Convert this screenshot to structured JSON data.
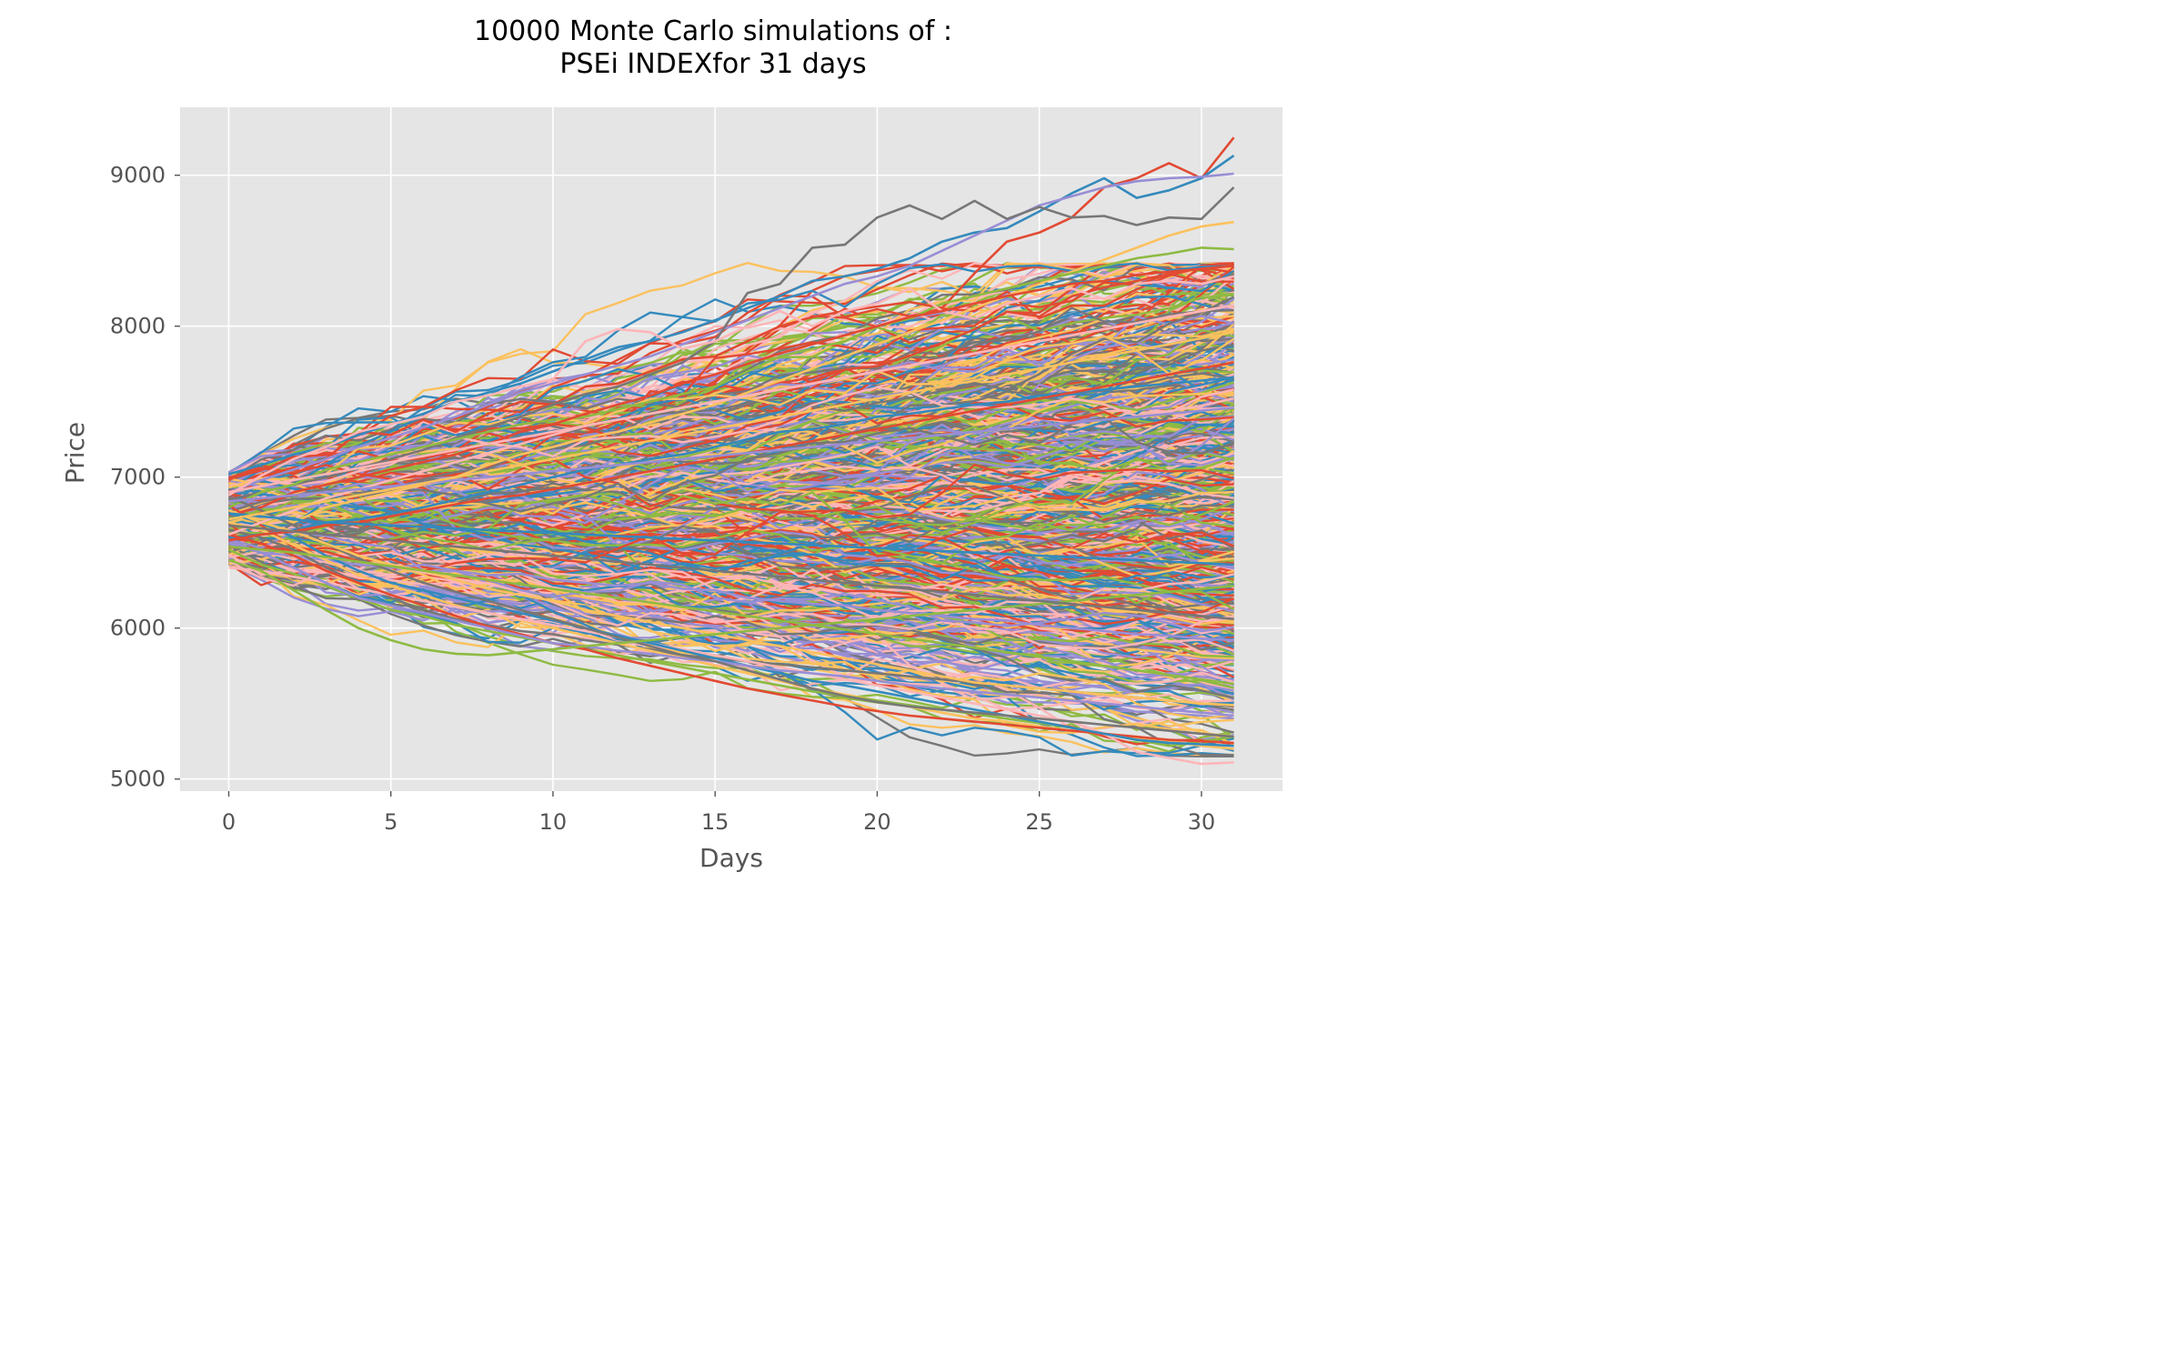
{
  "chart_data": {
    "type": "line",
    "title_lines": [
      "10000 Monte Carlo simulations of :",
      "PSEi INDEXfor 31 days"
    ],
    "xlabel": "Days",
    "ylabel": "Price",
    "xlim": [
      -1.5,
      32.5
    ],
    "ylim": [
      4920,
      9450
    ],
    "xticks": [
      0,
      5,
      10,
      15,
      20,
      25,
      30
    ],
    "yticks": [
      5000,
      6000,
      7000,
      8000,
      9000
    ],
    "grid": true,
    "style": "ggplot",
    "simulation": {
      "num_simulations": 10000,
      "days": 31,
      "start_price_range": [
        6400,
        7050
      ]
    },
    "colors": [
      "#E24A33",
      "#348ABD",
      "#988ED5",
      "#777777",
      "#FBC15E",
      "#8EBA42",
      "#FFB5B8"
    ],
    "series": [
      {
        "values": [
          6980,
          7080,
          7020,
          7120,
          7300,
          7280,
          7380,
          7300,
          7420,
          7500,
          7480,
          7600,
          7620,
          7700,
          7780,
          7800,
          7900,
          8000,
          8060,
          8100,
          8130,
          8160,
          8120,
          8350,
          8560,
          8620,
          8720,
          8920,
          8980,
          9080,
          8980,
          9250
        ]
      },
      {
        "values": [
          7020,
          7080,
          7150,
          7200,
          7280,
          7350,
          7420,
          7500,
          7560,
          7620,
          7700,
          7780,
          7860,
          7900,
          7960,
          8040,
          8120,
          8200,
          8300,
          8330,
          8380,
          8450,
          8560,
          8620,
          8650,
          8760,
          8880,
          8980,
          8850,
          8900,
          8980,
          9130
        ]
      },
      {
        "values": [
          6900,
          6980,
          7050,
          7120,
          7200,
          7260,
          7330,
          7400,
          7480,
          7560,
          7620,
          7680,
          7740,
          7800,
          7880,
          7960,
          8040,
          8120,
          8200,
          8280,
          8330,
          8400,
          8500,
          8600,
          8700,
          8800,
          8860,
          8920,
          8960,
          8980,
          8990,
          9010
        ]
      },
      {
        "values": [
          6850,
          6900,
          6950,
          7000,
          7060,
          7120,
          7180,
          7260,
          7330,
          7400,
          7480,
          7550,
          7600,
          7680,
          7760,
          7900,
          8220,
          8280,
          8520,
          8540,
          8720,
          8800,
          8710,
          8830,
          8710,
          8790,
          8720,
          8730,
          8670,
          8720,
          8710,
          8920
        ]
      },
      {
        "values": [
          6700,
          6750,
          6700,
          6800,
          6850,
          6900,
          6950,
          7000,
          7080,
          7150,
          7200,
          7260,
          7300,
          7360,
          7420,
          7480,
          7560,
          7640,
          7720,
          7800,
          7880,
          7960,
          8040,
          8120,
          8200,
          8280,
          8360,
          8440,
          8520,
          8600,
          8660,
          8690
        ]
      },
      {
        "values": [
          6800,
          6900,
          6950,
          7050,
          7100,
          7150,
          7200,
          7250,
          7300,
          7350,
          7380,
          7400,
          7450,
          7500,
          7550,
          7600,
          7700,
          7800,
          7850,
          7900,
          8000,
          8050,
          8150,
          8200,
          8250,
          8300,
          8350,
          8400,
          8450,
          8480,
          8520,
          8510
        ]
      },
      {
        "values": [
          6880,
          7010,
          7120,
          7200,
          7300,
          7350,
          7400,
          7500,
          7540,
          7600,
          7650,
          7900,
          7980,
          7960,
          7850,
          7900,
          8000,
          8100,
          8000,
          8100,
          8150,
          8250,
          8100,
          8050,
          8150,
          8200,
          8250,
          8180,
          8280,
          8300,
          8280,
          8330
        ]
      },
      {
        "values": [
          6750,
          6800,
          6900,
          6950,
          7000,
          7050,
          7100,
          7150,
          7220,
          7300,
          7350,
          7420,
          7480,
          7540,
          7620,
          7680,
          7750,
          7820,
          7880,
          7940,
          8000,
          8060,
          8100,
          8150,
          8200,
          8240,
          8280,
          8300,
          8340,
          8360,
          8380,
          8400
        ]
      },
      {
        "values": [
          6600,
          6620,
          6650,
          6700,
          6720,
          6760,
          6800,
          6850,
          6900,
          6950,
          7000,
          7050,
          7080,
          7120,
          7150,
          7200,
          7250,
          7300,
          7320,
          7350,
          7400,
          7420,
          7450,
          7480,
          7500,
          7540,
          7560,
          7580,
          7600,
          7620,
          7640,
          7660
        ]
      },
      {
        "values": [
          6560,
          6500,
          6480,
          6450,
          6420,
          6400,
          6420,
          6380,
          6350,
          6360,
          6320,
          6300,
          6280,
          6300,
          6260,
          6250,
          6200,
          6180,
          6160,
          6150,
          6120,
          6100,
          6080,
          6060,
          6050,
          6020,
          6000,
          5980,
          5960,
          5950,
          5930,
          5920
        ]
      },
      {
        "values": [
          6650,
          6600,
          6520,
          6400,
          6300,
          6200,
          6120,
          6060,
          6020,
          5980,
          5960,
          5920,
          5890,
          5860,
          5820,
          5800,
          5780,
          5760,
          5740,
          5720,
          5700,
          5680,
          5660,
          5640,
          5620,
          5600,
          5580,
          5560,
          5540,
          5520,
          5500,
          5480
        ]
      },
      {
        "values": [
          6700,
          6650,
          6550,
          6450,
          6350,
          6280,
          6220,
          6150,
          6100,
          6050,
          6000,
          5950,
          5900,
          5850,
          5800,
          5750,
          5700,
          5650,
          5600,
          5560,
          5520,
          5480,
          5440,
          5400,
          5380,
          5350,
          5320,
          5300,
          5270,
          5250,
          5220,
          5200
        ]
      },
      {
        "values": [
          6520,
          6420,
          6360,
          6280,
          6200,
          6120,
          6080,
          6020,
          5980,
          5940,
          5900,
          5860,
          5820,
          5780,
          5740,
          5700,
          5660,
          5620,
          5580,
          5550,
          5520,
          5490,
          5460,
          5430,
          5400,
          5370,
          5340,
          5300,
          5260,
          5220,
          5250,
          5280
        ]
      },
      {
        "values": [
          6400,
          6380,
          6340,
          6300,
          6260,
          6220,
          6180,
          6140,
          6100,
          6060,
          6020,
          5980,
          5940,
          5900,
          5860,
          5820,
          5780,
          5740,
          5700,
          5660,
          5620,
          5580,
          5540,
          5500,
          5460,
          5420,
          5380,
          5300,
          5180,
          5140,
          5100,
          5110
        ]
      },
      {
        "values": [
          6620,
          6560,
          6480,
          6380,
          6300,
          6220,
          6150,
          6080,
          6010,
          5960,
          5900,
          5860,
          5800,
          5750,
          5700,
          5650,
          5600,
          5560,
          5520,
          5480,
          5450,
          5420,
          5400,
          5380,
          5360,
          5340,
          5320,
          5300,
          5280,
          5260,
          5250,
          5240
        ]
      },
      {
        "values": [
          6760,
          6700,
          6600,
          6480,
          6380,
          6300,
          6250,
          6200,
          6150,
          6100,
          6050,
          6000,
          5950,
          5900,
          5850,
          5800,
          5750,
          5700,
          5650,
          5620,
          5580,
          5540,
          5500,
          5460,
          5420,
          5380,
          5340,
          5300,
          5260,
          5240,
          5230,
          5220
        ]
      },
      {
        "values": [
          6580,
          6500,
          6400,
          6300,
          6200,
          6150,
          6100,
          6050,
          6000,
          5950,
          5900,
          5880,
          5850,
          5830,
          5800,
          5780,
          5750,
          5720,
          5700,
          5680,
          5650,
          5620,
          5600,
          5580,
          5560,
          5540,
          5520,
          5500,
          5480,
          5460,
          5440,
          5420
        ]
      },
      {
        "values": [
          6870,
          6780,
          6680,
          6560,
          6460,
          6380,
          6300,
          6240,
          6180,
          6120,
          6060,
          6000,
          5940,
          5880,
          5820,
          5780,
          5720,
          5660,
          5600,
          5550,
          5510,
          5480,
          5460,
          5440,
          5420,
          5400,
          5380,
          5360,
          5340,
          5320,
          5300,
          5280
        ]
      },
      {
        "values": [
          6780,
          6700,
          6640,
          6560,
          6480,
          6420,
          6380,
          6320,
          6260,
          6220,
          6180,
          6120,
          6080,
          6040,
          6000,
          5960,
          5920,
          5880,
          5840,
          5800,
          5760,
          5720,
          5680,
          5640,
          5620,
          5600,
          5580,
          5560,
          5540,
          5520,
          5500,
          5490
        ]
      },
      {
        "values": [
          6450,
          6380,
          6250,
          6120,
          6000,
          5920,
          5860,
          5830,
          5820,
          5840,
          5860,
          5880,
          5900,
          5920,
          5940,
          5960,
          5980,
          6000,
          6020,
          6040,
          6060,
          6080,
          6100,
          6120,
          6140,
          6160,
          6180,
          6200,
          6220,
          6240,
          6260,
          6280
        ]
      },
      {
        "values": [
          6620,
          6700,
          6780,
          6860,
          6920,
          6980,
          7040,
          7100,
          7160,
          7220,
          7280,
          7340,
          7380,
          7420,
          7460,
          7500,
          7540,
          7580,
          7620,
          7660,
          7700,
          7740,
          7780,
          7820,
          7860,
          7900,
          7940,
          7980,
          8020,
          8060,
          8100,
          8140
        ]
      },
      {
        "values": [
          6580,
          6620,
          6640,
          6680,
          6700,
          6740,
          6780,
          6820,
          6860,
          6880,
          6920,
          6960,
          7000,
          7040,
          7080,
          7120,
          7160,
          7200,
          7240,
          7280,
          7320,
          7360,
          7400,
          7440,
          7480,
          7520,
          7560,
          7600,
          7640,
          7680,
          7720,
          7760
        ]
      },
      {
        "values": [
          6760,
          6740,
          6720,
          6700,
          6690,
          6680,
          6670,
          6660,
          6650,
          6640,
          6630,
          6620,
          6610,
          6600,
          6590,
          6580,
          6570,
          6560,
          6550,
          6540,
          6530,
          6520,
          6510,
          6500,
          6490,
          6480,
          6470,
          6460,
          6450,
          6440,
          6430,
          6420
        ]
      },
      {
        "values": [
          6840,
          6860,
          6880,
          6900,
          6920,
          6940,
          6960,
          6980,
          7000,
          7020,
          7040,
          7060,
          7080,
          7100,
          7120,
          7140,
          7160,
          7180,
          7200,
          7220,
          7240,
          7260,
          7280,
          7300,
          7320,
          7340,
          7360,
          7380,
          7400,
          7420,
          7440,
          7460
        ]
      },
      {
        "values": [
          6680,
          6660,
          6640,
          6620,
          6600,
          6580,
          6560,
          6540,
          6520,
          6500,
          6480,
          6460,
          6440,
          6420,
          6400,
          6380,
          6360,
          6340,
          6320,
          6300,
          6280,
          6260,
          6240,
          6220,
          6200,
          6180,
          6160,
          6140,
          6120,
          6100,
          6080,
          6060
        ]
      },
      {
        "values": [
          6720,
          6760,
          6800,
          6840,
          6880,
          6920,
          6960,
          7000,
          7040,
          7080,
          7120,
          7160,
          7200,
          7240,
          7280,
          7320,
          7360,
          7400,
          7440,
          7480,
          7520,
          7560,
          7600,
          7640,
          7680,
          7720,
          7760,
          7800,
          7840,
          7880,
          7920,
          7960
        ]
      },
      {
        "values": [
          6540,
          6520,
          6500,
          6470,
          6440,
          6410,
          6380,
          6350,
          6320,
          6290,
          6260,
          6230,
          6200,
          6170,
          6140,
          6110,
          6080,
          6050,
          6020,
          5990,
          5960,
          5930,
          5900,
          5870,
          5840,
          5810,
          5780,
          5750,
          5720,
          5690,
          5660,
          5630
        ]
      },
      {
        "values": [
          6900,
          6940,
          6980,
          7020,
          7060,
          7100,
          7140,
          7180,
          7220,
          7260,
          7300,
          7340,
          7380,
          7420,
          7460,
          7500,
          7540,
          7580,
          7620,
          7660,
          7700,
          7740,
          7780,
          7820,
          7860,
          7900,
          7940,
          7980,
          8020,
          8060,
          8100,
          8140
        ]
      }
    ]
  }
}
